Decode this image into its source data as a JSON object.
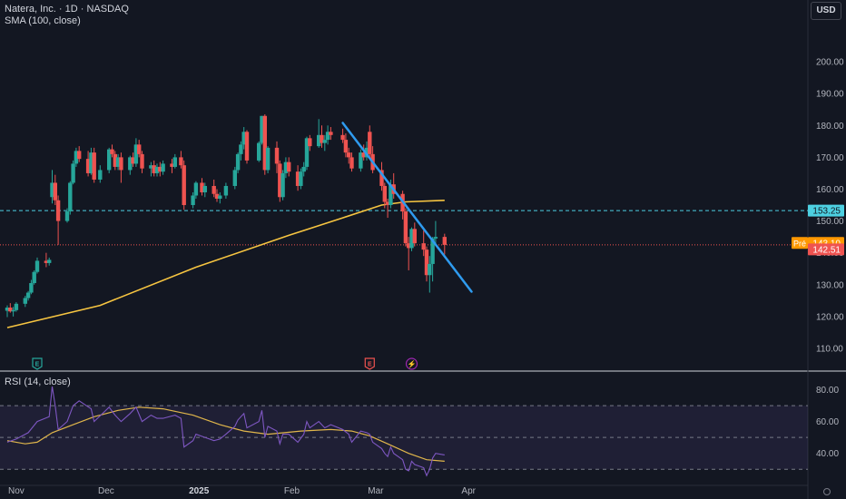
{
  "header": {
    "symbol_line": "Natera, Inc. · 1D · NASDAQ",
    "indicator_line": "SMA (100, close)",
    "currency_button": "USD"
  },
  "rsi_panel": {
    "label": "RSI (14, close)"
  },
  "colors": {
    "background": "#131722",
    "up": "#26a69a",
    "down": "#ef5350",
    "sma": "#f7c541",
    "rsi": "#7e57c2",
    "rsi_ma": "#e0b64b",
    "trendline": "#2f9bef",
    "ref_line": "#4dd0e1",
    "pre_market": "#ff9800",
    "grid": "#2a2e39"
  },
  "price_labels": {
    "ref_level": "153.25",
    "pre_tag": "Pré",
    "pre_price": "143.10",
    "last_price": "142.51"
  },
  "events": [
    {
      "date": "2024-11-08",
      "icon": "earnings-icon",
      "text": "E"
    },
    {
      "date": "2025-02-27",
      "icon": "earnings-icon",
      "text": "E"
    },
    {
      "date": "2025-03-13",
      "icon": "split-icon",
      "text": "⚡"
    }
  ],
  "chart_data": [
    {
      "type": "candlestick",
      "y_ticks": [
        "200.00",
        "190.00",
        "180.00",
        "170.00",
        "160.00",
        "150.00",
        "140.00",
        "130.00",
        "120.00",
        "110.00"
      ],
      "x_ticks": [
        "Nov",
        "Dec",
        "2025",
        "Feb",
        "Mar",
        "Apr"
      ],
      "ylim": [
        104,
        212
      ],
      "ref_level": 153.25,
      "pre_market_price": 143.1,
      "last_price": 142.51,
      "ohlc": [
        [
          "2024-10-29",
          121.8,
          123.5,
          119.8,
          122.8
        ],
        [
          "2024-10-30",
          122.8,
          124.2,
          121.2,
          121.6
        ],
        [
          "2024-10-31",
          121.6,
          123.0,
          120.0,
          122.0
        ],
        [
          "2024-11-01",
          122.0,
          124.5,
          121.5,
          124.0
        ],
        [
          "2024-11-04",
          124.0,
          126.5,
          123.0,
          125.8
        ],
        [
          "2024-11-05",
          125.8,
          128.0,
          125.0,
          127.5
        ],
        [
          "2024-11-06",
          127.5,
          131.5,
          127.0,
          130.5
        ],
        [
          "2024-11-07",
          130.5,
          134.5,
          130.0,
          134.0
        ],
        [
          "2024-11-08",
          134.0,
          138.5,
          133.5,
          137.5
        ],
        [
          "2024-11-11",
          137.5,
          140.0,
          135.5,
          136.8
        ],
        [
          "2024-11-12",
          136.8,
          138.5,
          136.0,
          137.8
        ],
        [
          "2024-11-13",
          157.5,
          166.0,
          155.5,
          162.0
        ],
        [
          "2024-11-14",
          162.0,
          164.5,
          155.0,
          156.5
        ],
        [
          "2024-11-15",
          156.5,
          158.0,
          142.5,
          150.0
        ],
        [
          "2024-11-18",
          150.0,
          154.0,
          149.5,
          153.0
        ],
        [
          "2024-11-19",
          153.0,
          162.5,
          152.0,
          162.0
        ],
        [
          "2024-11-20",
          162.0,
          169.0,
          161.5,
          168.0
        ],
        [
          "2024-11-21",
          168.0,
          173.0,
          167.0,
          172.0
        ],
        [
          "2024-11-22",
          172.0,
          173.5,
          168.5,
          169.5
        ],
        [
          "2024-11-25",
          169.5,
          172.0,
          164.0,
          165.0
        ],
        [
          "2024-11-26",
          165.0,
          173.0,
          164.5,
          171.5
        ],
        [
          "2024-11-27",
          171.5,
          173.0,
          162.0,
          163.0
        ],
        [
          "2024-11-29",
          163.0,
          167.5,
          162.0,
          166.0
        ],
        [
          "2024-12-02",
          166.0,
          173.0,
          165.0,
          172.5
        ],
        [
          "2024-12-03",
          172.5,
          174.0,
          170.0,
          171.0
        ],
        [
          "2024-12-04",
          171.0,
          172.0,
          166.0,
          167.0
        ],
        [
          "2024-12-05",
          167.0,
          171.0,
          166.0,
          170.0
        ],
        [
          "2024-12-06",
          170.0,
          171.5,
          162.0,
          166.0
        ],
        [
          "2024-12-09",
          166.0,
          170.5,
          164.5,
          170.0
        ],
        [
          "2024-12-10",
          170.0,
          171.5,
          167.0,
          168.0
        ],
        [
          "2024-12-11",
          168.0,
          176.0,
          167.0,
          174.0
        ],
        [
          "2024-12-12",
          174.0,
          175.5,
          170.0,
          171.0
        ],
        [
          "2024-12-13",
          171.0,
          172.0,
          165.0,
          166.5
        ],
        [
          "2024-12-16",
          166.5,
          168.5,
          164.0,
          167.5
        ],
        [
          "2024-12-17",
          167.5,
          169.0,
          164.0,
          165.0
        ],
        [
          "2024-12-18",
          165.0,
          168.0,
          164.0,
          167.0
        ],
        [
          "2024-12-19",
          167.0,
          168.5,
          164.0,
          165.5
        ],
        [
          "2024-12-20",
          165.5,
          169.0,
          164.5,
          168.0
        ],
        [
          "2024-12-23",
          168.0,
          169.5,
          165.0,
          167.0
        ],
        [
          "2024-12-24",
          167.0,
          171.0,
          166.5,
          170.0
        ],
        [
          "2024-12-26",
          170.0,
          172.0,
          166.5,
          167.5
        ],
        [
          "2024-12-27",
          167.5,
          169.0,
          153.5,
          155.0
        ],
        [
          "2024-12-30",
          155.0,
          159.0,
          154.0,
          158.0
        ],
        [
          "2024-12-31",
          158.0,
          162.5,
          157.0,
          162.0
        ],
        [
          "2025-01-02",
          162.0,
          163.5,
          158.0,
          159.0
        ],
        [
          "2025-01-03",
          159.0,
          162.0,
          157.5,
          161.0
        ],
        [
          "2025-01-06",
          161.0,
          163.0,
          157.5,
          158.5
        ],
        [
          "2025-01-07",
          158.5,
          160.0,
          156.0,
          157.0
        ],
        [
          "2025-01-08",
          157.0,
          159.0,
          155.5,
          158.0
        ],
        [
          "2025-01-10",
          158.0,
          162.0,
          157.0,
          161.0
        ],
        [
          "2025-01-13",
          161.0,
          167.0,
          160.0,
          166.0
        ],
        [
          "2025-01-14",
          166.0,
          171.5,
          165.0,
          171.0
        ],
        [
          "2025-01-15",
          171.0,
          175.0,
          169.0,
          174.0
        ],
        [
          "2025-01-16",
          174.0,
          179.5,
          172.5,
          178.0
        ],
        [
          "2025-01-17",
          178.0,
          178.5,
          168.0,
          169.0
        ],
        [
          "2025-01-21",
          169.0,
          175.0,
          168.5,
          174.5
        ],
        [
          "2025-01-22",
          174.5,
          183.0,
          174.0,
          183.0
        ],
        [
          "2025-01-23",
          183.0,
          183.5,
          164.5,
          166.0
        ],
        [
          "2025-01-24",
          166.0,
          173.5,
          165.0,
          173.0
        ],
        [
          "2025-01-27",
          173.0,
          175.0,
          165.0,
          168.0
        ],
        [
          "2025-01-28",
          168.0,
          169.0,
          156.0,
          157.5
        ],
        [
          "2025-01-29",
          157.5,
          166.0,
          156.5,
          165.0
        ],
        [
          "2025-01-30",
          165.0,
          170.0,
          163.5,
          168.5
        ],
        [
          "2025-01-31",
          168.5,
          170.0,
          164.0,
          165.5
        ],
        [
          "2025-02-03",
          165.5,
          167.5,
          159.5,
          161.0
        ],
        [
          "2025-02-04",
          161.0,
          166.5,
          160.0,
          165.5
        ],
        [
          "2025-02-05",
          165.5,
          168.5,
          164.0,
          167.0
        ],
        [
          "2025-02-06",
          167.0,
          176.5,
          166.0,
          176.0
        ],
        [
          "2025-02-07",
          176.0,
          177.0,
          172.0,
          173.5
        ],
        [
          "2025-02-10",
          173.5,
          182.0,
          173.0,
          177.0
        ],
        [
          "2025-02-11",
          177.0,
          180.0,
          173.0,
          174.5
        ],
        [
          "2025-02-12",
          174.5,
          177.0,
          172.0,
          175.5
        ],
        [
          "2025-02-13",
          175.5,
          180.0,
          174.0,
          178.0
        ],
        [
          "2025-02-14",
          178.0,
          179.5,
          175.5,
          177.0
        ],
        [
          "2025-02-18",
          177.0,
          179.0,
          174.5,
          175.5
        ],
        [
          "2025-02-19",
          175.5,
          177.5,
          170.0,
          171.5
        ],
        [
          "2025-02-20",
          171.5,
          173.0,
          168.0,
          170.0
        ],
        [
          "2025-02-21",
          170.0,
          171.5,
          165.5,
          166.5
        ],
        [
          "2025-02-24",
          166.5,
          172.5,
          165.5,
          171.5
        ],
        [
          "2025-02-25",
          171.5,
          174.0,
          169.0,
          170.0
        ],
        [
          "2025-02-26",
          170.0,
          175.0,
          169.0,
          173.0
        ],
        [
          "2025-02-27",
          178.0,
          180.0,
          170.0,
          171.0
        ],
        [
          "2025-02-28",
          171.0,
          173.5,
          165.0,
          166.0
        ],
        [
          "2025-03-03",
          166.0,
          168.5,
          159.5,
          161.0
        ],
        [
          "2025-03-04",
          161.0,
          162.0,
          154.0,
          156.0
        ],
        [
          "2025-03-05",
          156.0,
          157.0,
          151.0,
          155.0
        ],
        [
          "2025-03-06",
          155.0,
          163.0,
          154.0,
          161.5
        ],
        [
          "2025-03-07",
          161.5,
          165.0,
          157.0,
          158.5
        ],
        [
          "2025-03-10",
          158.5,
          159.5,
          150.5,
          153.0
        ],
        [
          "2025-03-11",
          153.0,
          154.0,
          142.0,
          143.0
        ],
        [
          "2025-03-12",
          143.0,
          145.0,
          134.5,
          141.5
        ],
        [
          "2025-03-13",
          141.5,
          148.0,
          140.5,
          147.5
        ],
        [
          "2025-03-14",
          147.5,
          149.5,
          142.0,
          143.0
        ],
        [
          "2025-03-17",
          143.0,
          147.0,
          139.0,
          141.0
        ],
        [
          "2025-03-18",
          141.0,
          142.0,
          131.0,
          133.0
        ],
        [
          "2025-03-19",
          133.0,
          139.0,
          127.5,
          136.5
        ],
        [
          "2025-03-20",
          136.5,
          145.0,
          131.0,
          144.5
        ],
        [
          "2025-03-21",
          144.5,
          150.0,
          143.0,
          145.0
        ],
        [
          "2025-03-24",
          145.0,
          146.0,
          139.5,
          142.5
        ]
      ],
      "sma": [
        [
          "2024-10-29",
          116.5
        ],
        [
          "2024-11-29",
          123.5
        ],
        [
          "2024-12-31",
          135.5
        ],
        [
          "2025-01-31",
          145.5
        ],
        [
          "2025-02-18",
          151.0
        ],
        [
          "2025-03-03",
          155.0
        ],
        [
          "2025-03-11",
          156.0
        ],
        [
          "2025-03-24",
          156.5
        ]
      ],
      "trendline": [
        [
          "2025-02-18",
          180.8
        ],
        [
          "2025-04-02",
          127.8
        ]
      ]
    },
    {
      "type": "line",
      "title": "RSI (14, close)",
      "y_ticks": [
        "80.00",
        "60.00",
        "40.00"
      ],
      "ylim": [
        21,
        90
      ],
      "band": [
        30,
        70
      ],
      "midline": 50,
      "rsi": [
        [
          "2024-10-29",
          47
        ],
        [
          "2024-11-01",
          49
        ],
        [
          "2024-11-05",
          53
        ],
        [
          "2024-11-08",
          60
        ],
        [
          "2024-11-12",
          63
        ],
        [
          "2024-11-13",
          82
        ],
        [
          "2024-11-14",
          70
        ],
        [
          "2024-11-15",
          55
        ],
        [
          "2024-11-18",
          60
        ],
        [
          "2024-11-20",
          70
        ],
        [
          "2024-11-22",
          73
        ],
        [
          "2024-11-26",
          68
        ],
        [
          "2024-11-27",
          60
        ],
        [
          "2024-12-02",
          69
        ],
        [
          "2024-12-04",
          64
        ],
        [
          "2024-12-06",
          60
        ],
        [
          "2024-12-09",
          65
        ],
        [
          "2024-12-11",
          69
        ],
        [
          "2024-12-13",
          60
        ],
        [
          "2024-12-16",
          64
        ],
        [
          "2024-12-18",
          62
        ],
        [
          "2024-12-20",
          62
        ],
        [
          "2024-12-24",
          64
        ],
        [
          "2024-12-26",
          62
        ],
        [
          "2024-12-27",
          44
        ],
        [
          "2024-12-30",
          48
        ],
        [
          "2024-12-31",
          52
        ],
        [
          "2025-01-03",
          50
        ],
        [
          "2025-01-06",
          48
        ],
        [
          "2025-01-08",
          49
        ],
        [
          "2025-01-10",
          52
        ],
        [
          "2025-01-13",
          57
        ],
        [
          "2025-01-14",
          61
        ],
        [
          "2025-01-16",
          65
        ],
        [
          "2025-01-17",
          56
        ],
        [
          "2025-01-21",
          60
        ],
        [
          "2025-01-22",
          67
        ],
        [
          "2025-01-23",
          50
        ],
        [
          "2025-01-24",
          57
        ],
        [
          "2025-01-27",
          54
        ],
        [
          "2025-01-28",
          46
        ],
        [
          "2025-01-29",
          52
        ],
        [
          "2025-01-31",
          52
        ],
        [
          "2025-02-03",
          47
        ],
        [
          "2025-02-05",
          52
        ],
        [
          "2025-02-06",
          60
        ],
        [
          "2025-02-07",
          56
        ],
        [
          "2025-02-10",
          60
        ],
        [
          "2025-02-12",
          56
        ],
        [
          "2025-02-14",
          58
        ],
        [
          "2025-02-18",
          55
        ],
        [
          "2025-02-20",
          52
        ],
        [
          "2025-02-21",
          47
        ],
        [
          "2025-02-24",
          54
        ],
        [
          "2025-02-26",
          53
        ],
        [
          "2025-02-27",
          52
        ],
        [
          "2025-02-28",
          47
        ],
        [
          "2025-03-03",
          43
        ],
        [
          "2025-03-04",
          40
        ],
        [
          "2025-03-05",
          38
        ],
        [
          "2025-03-06",
          44
        ],
        [
          "2025-03-07",
          40
        ],
        [
          "2025-03-10",
          36
        ],
        [
          "2025-03-11",
          30
        ],
        [
          "2025-03-12",
          29
        ],
        [
          "2025-03-13",
          35
        ],
        [
          "2025-03-14",
          33
        ],
        [
          "2025-03-17",
          31
        ],
        [
          "2025-03-18",
          26
        ],
        [
          "2025-03-19",
          30
        ],
        [
          "2025-03-20",
          37
        ],
        [
          "2025-03-21",
          40
        ],
        [
          "2025-03-24",
          39
        ]
      ],
      "rsi_ma": [
        [
          "2024-10-29",
          48
        ],
        [
          "2024-11-04",
          46
        ],
        [
          "2024-11-08",
          47
        ],
        [
          "2024-11-13",
          53
        ],
        [
          "2024-11-20",
          58
        ],
        [
          "2024-11-27",
          63
        ],
        [
          "2024-12-05",
          67
        ],
        [
          "2024-12-12",
          69
        ],
        [
          "2024-12-20",
          68
        ],
        [
          "2024-12-30",
          64
        ],
        [
          "2025-01-08",
          58
        ],
        [
          "2025-01-16",
          54
        ],
        [
          "2025-01-24",
          52
        ],
        [
          "2025-02-04",
          54
        ],
        [
          "2025-02-14",
          55
        ],
        [
          "2025-02-21",
          54
        ],
        [
          "2025-02-27",
          51
        ],
        [
          "2025-03-05",
          46
        ],
        [
          "2025-03-12",
          40
        ],
        [
          "2025-03-18",
          36
        ],
        [
          "2025-03-24",
          35
        ]
      ]
    }
  ]
}
